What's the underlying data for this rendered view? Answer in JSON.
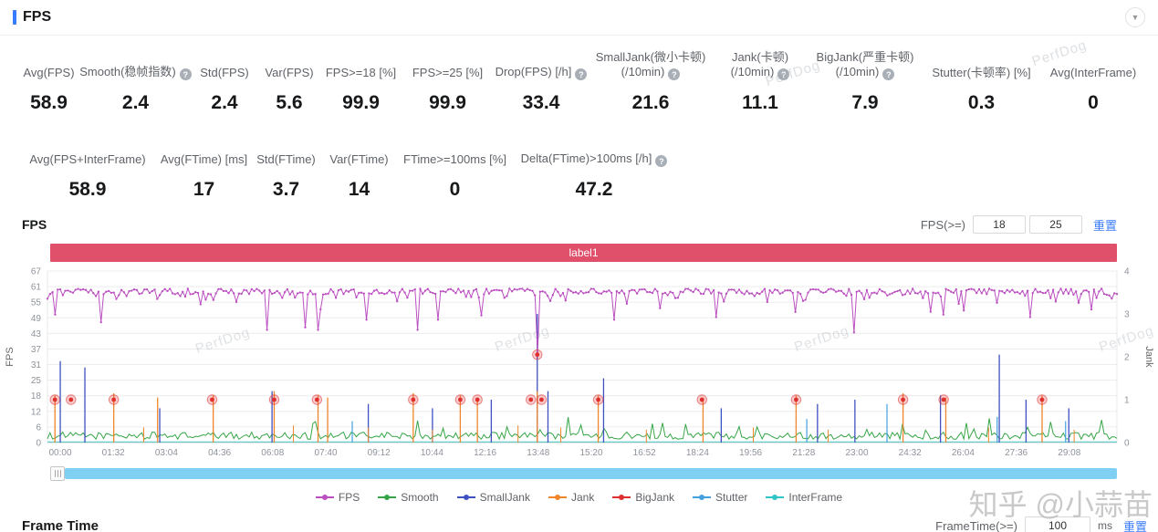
{
  "header": {
    "title": "FPS"
  },
  "stats": {
    "row1": [
      {
        "label": "Avg(FPS)",
        "value": "58.9"
      },
      {
        "label": "Smooth(稳帧指数)",
        "help": true,
        "value": "2.4"
      },
      {
        "label": "Std(FPS)",
        "value": "2.4"
      },
      {
        "label": "Var(FPS)",
        "value": "5.6"
      },
      {
        "label": "FPS>=18 [%]",
        "value": "99.9"
      },
      {
        "label": "FPS>=25 [%]",
        "value": "99.9"
      },
      {
        "label": "Drop(FPS) [/h]",
        "help": true,
        "value": "33.4"
      },
      {
        "label": "SmallJank(微小卡顿)",
        "label2": "(/10min)",
        "help": true,
        "value": "21.6"
      },
      {
        "label": "Jank(卡顿)",
        "label2": "(/10min)",
        "help": true,
        "value": "11.1"
      },
      {
        "label": "BigJank(严重卡顿)",
        "label2": "(/10min)",
        "help": true,
        "value": "7.9"
      },
      {
        "label": "Stutter(卡顿率) [%]",
        "value": "0.3"
      },
      {
        "label": "Avg(InterFrame)",
        "value": "0"
      }
    ],
    "row2": [
      {
        "label": "Avg(FPS+InterFrame)",
        "value": "58.9"
      },
      {
        "label": "Avg(FTime) [ms]",
        "value": "17"
      },
      {
        "label": "Std(FTime)",
        "value": "3.7"
      },
      {
        "label": "Var(FTime)",
        "value": "14"
      },
      {
        "label": "FTime>=100ms [%]",
        "value": "0"
      },
      {
        "label": "Delta(FTime)>100ms [/h]",
        "help": true,
        "value": "47.2"
      }
    ]
  },
  "chart_section": {
    "title": "FPS",
    "filter_label": "FPS(>=)",
    "input1": "18",
    "input2": "25",
    "reset_label": "重置",
    "banner": {
      "label": "label1",
      "color": "#e0506a"
    }
  },
  "legend": [
    {
      "label": "FPS",
      "color": "#bb4fc1"
    },
    {
      "label": "Smooth",
      "color": "#35a546"
    },
    {
      "label": "SmallJank",
      "color": "#3f51c1"
    },
    {
      "label": "Jank",
      "color": "#f0862b"
    },
    {
      "label": "BigJank",
      "color": "#e02f2f"
    },
    {
      "label": "Stutter",
      "color": "#42a0e0"
    },
    {
      "label": "InterFrame",
      "color": "#2fc5c5"
    }
  ],
  "chart_data": {
    "type": "line",
    "title": "label1",
    "left_axis": {
      "label": "FPS",
      "ticks": [
        0,
        6,
        12,
        18,
        25,
        31,
        37,
        43,
        49,
        55,
        61,
        67
      ],
      "max": 67
    },
    "right_axis": {
      "label": "Jank",
      "ticks": [
        0,
        1,
        2,
        3,
        4
      ],
      "max": 4
    },
    "x_ticks": [
      "00:00",
      "01:32",
      "03:04",
      "04:36",
      "06:08",
      "07:40",
      "09:12",
      "10:44",
      "12:16",
      "13:48",
      "15:20",
      "16:52",
      "18:24",
      "19:56",
      "21:28",
      "23:00",
      "24:32",
      "26:04",
      "27:36",
      "29:08"
    ],
    "fps_baseline": {
      "mean": 58.8,
      "spread": 2.2,
      "max": 61.5
    },
    "smooth_baseline": {
      "mean": 2.5
    },
    "interframe_value": 0,
    "fps_dips": [
      {
        "x": 0.008,
        "v": 50
      },
      {
        "x": 0.049,
        "v": 47
      },
      {
        "x": 0.205,
        "v": 44
      },
      {
        "x": 0.242,
        "v": 45
      },
      {
        "x": 0.252,
        "v": 44
      },
      {
        "x": 0.298,
        "v": 48
      },
      {
        "x": 0.345,
        "v": 44
      },
      {
        "x": 0.366,
        "v": 48
      },
      {
        "x": 0.458,
        "v": 35
      },
      {
        "x": 0.53,
        "v": 48
      },
      {
        "x": 0.625,
        "v": 49
      },
      {
        "x": 0.7,
        "v": 51
      },
      {
        "x": 0.755,
        "v": 43
      },
      {
        "x": 0.838,
        "v": 50
      },
      {
        "x": 0.92,
        "v": 49
      },
      {
        "x": 0.975,
        "v": 52
      }
    ],
    "jank_spikes": [
      {
        "x": 0.007,
        "h": 1.1
      },
      {
        "x": 0.062,
        "h": 1.15
      },
      {
        "x": 0.103,
        "h": 1.05
      },
      {
        "x": 0.155,
        "h": 1.1
      },
      {
        "x": 0.212,
        "h": 1.2
      },
      {
        "x": 0.253,
        "h": 1.1
      },
      {
        "x": 0.262,
        "h": 1.05
      },
      {
        "x": 0.342,
        "h": 1.15
      },
      {
        "x": 0.386,
        "h": 1.1
      },
      {
        "x": 0.402,
        "h": 1.05
      },
      {
        "x": 0.458,
        "h": 1.2
      },
      {
        "x": 0.515,
        "h": 1.1
      },
      {
        "x": 0.613,
        "h": 1.05
      },
      {
        "x": 0.7,
        "h": 1.1
      },
      {
        "x": 0.8,
        "h": 1.15
      },
      {
        "x": 0.84,
        "h": 1.05
      },
      {
        "x": 0.93,
        "h": 1.1
      },
      {
        "x": 0.09,
        "h": 0.35
      },
      {
        "x": 0.23,
        "h": 0.4
      },
      {
        "x": 0.3,
        "h": 0.35
      },
      {
        "x": 0.36,
        "h": 0.3
      },
      {
        "x": 0.44,
        "h": 0.4
      },
      {
        "x": 0.48,
        "h": 0.35
      },
      {
        "x": 0.56,
        "h": 0.3
      },
      {
        "x": 0.66,
        "h": 0.35
      },
      {
        "x": 0.73,
        "h": 0.3
      },
      {
        "x": 0.88,
        "h": 0.35
      },
      {
        "x": 0.96,
        "h": 0.3
      }
    ],
    "small_jank_spikes": [
      {
        "x": 0.012,
        "h": 1.9
      },
      {
        "x": 0.035,
        "h": 1.75
      },
      {
        "x": 0.105,
        "h": 0.8
      },
      {
        "x": 0.21,
        "h": 1.2
      },
      {
        "x": 0.3,
        "h": 0.9
      },
      {
        "x": 0.36,
        "h": 0.8
      },
      {
        "x": 0.415,
        "h": 1.0
      },
      {
        "x": 0.458,
        "h": 3.0
      },
      {
        "x": 0.468,
        "h": 1.2
      },
      {
        "x": 0.52,
        "h": 1.5
      },
      {
        "x": 0.63,
        "h": 0.8
      },
      {
        "x": 0.72,
        "h": 0.9
      },
      {
        "x": 0.755,
        "h": 1.0
      },
      {
        "x": 0.835,
        "h": 1.1
      },
      {
        "x": 0.89,
        "h": 2.05
      },
      {
        "x": 0.915,
        "h": 1.0
      },
      {
        "x": 0.955,
        "h": 0.8
      }
    ],
    "stutter_spikes": [
      {
        "x": 0.285,
        "h": 0.5
      },
      {
        "x": 0.71,
        "h": 0.55
      },
      {
        "x": 0.785,
        "h": 0.9
      },
      {
        "x": 0.888,
        "h": 0.6
      },
      {
        "x": 0.952,
        "h": 0.5
      }
    ],
    "big_jank_markers": [
      {
        "x": 0.007,
        "jank": 1
      },
      {
        "x": 0.022,
        "jank": 1
      },
      {
        "x": 0.062,
        "jank": 1
      },
      {
        "x": 0.154,
        "jank": 1
      },
      {
        "x": 0.212,
        "jank": 1
      },
      {
        "x": 0.252,
        "jank": 1
      },
      {
        "x": 0.342,
        "jank": 1
      },
      {
        "x": 0.386,
        "jank": 1
      },
      {
        "x": 0.402,
        "jank": 1
      },
      {
        "x": 0.452,
        "jank": 1
      },
      {
        "x": 0.458,
        "jank": 2.05
      },
      {
        "x": 0.462,
        "jank": 1
      },
      {
        "x": 0.515,
        "jank": 1
      },
      {
        "x": 0.612,
        "jank": 1
      },
      {
        "x": 0.7,
        "jank": 1
      },
      {
        "x": 0.8,
        "jank": 1
      },
      {
        "x": 0.838,
        "jank": 1
      },
      {
        "x": 0.93,
        "jank": 1
      }
    ],
    "watermarks": [
      {
        "x": 0.14,
        "y": 0.48
      },
      {
        "x": 0.42,
        "y": 0.47
      },
      {
        "x": 0.7,
        "y": 0.47
      },
      {
        "x": 0.985,
        "y": 0.47
      }
    ]
  },
  "frame_time_section": {
    "title": "Frame Time",
    "filter_label": "FrameTime(>=)",
    "input": "100",
    "unit": "ms",
    "reset_label": "重置"
  },
  "watermark": {
    "text": "知乎 @小蒜苗"
  },
  "brand_watermark": "PerfDog"
}
